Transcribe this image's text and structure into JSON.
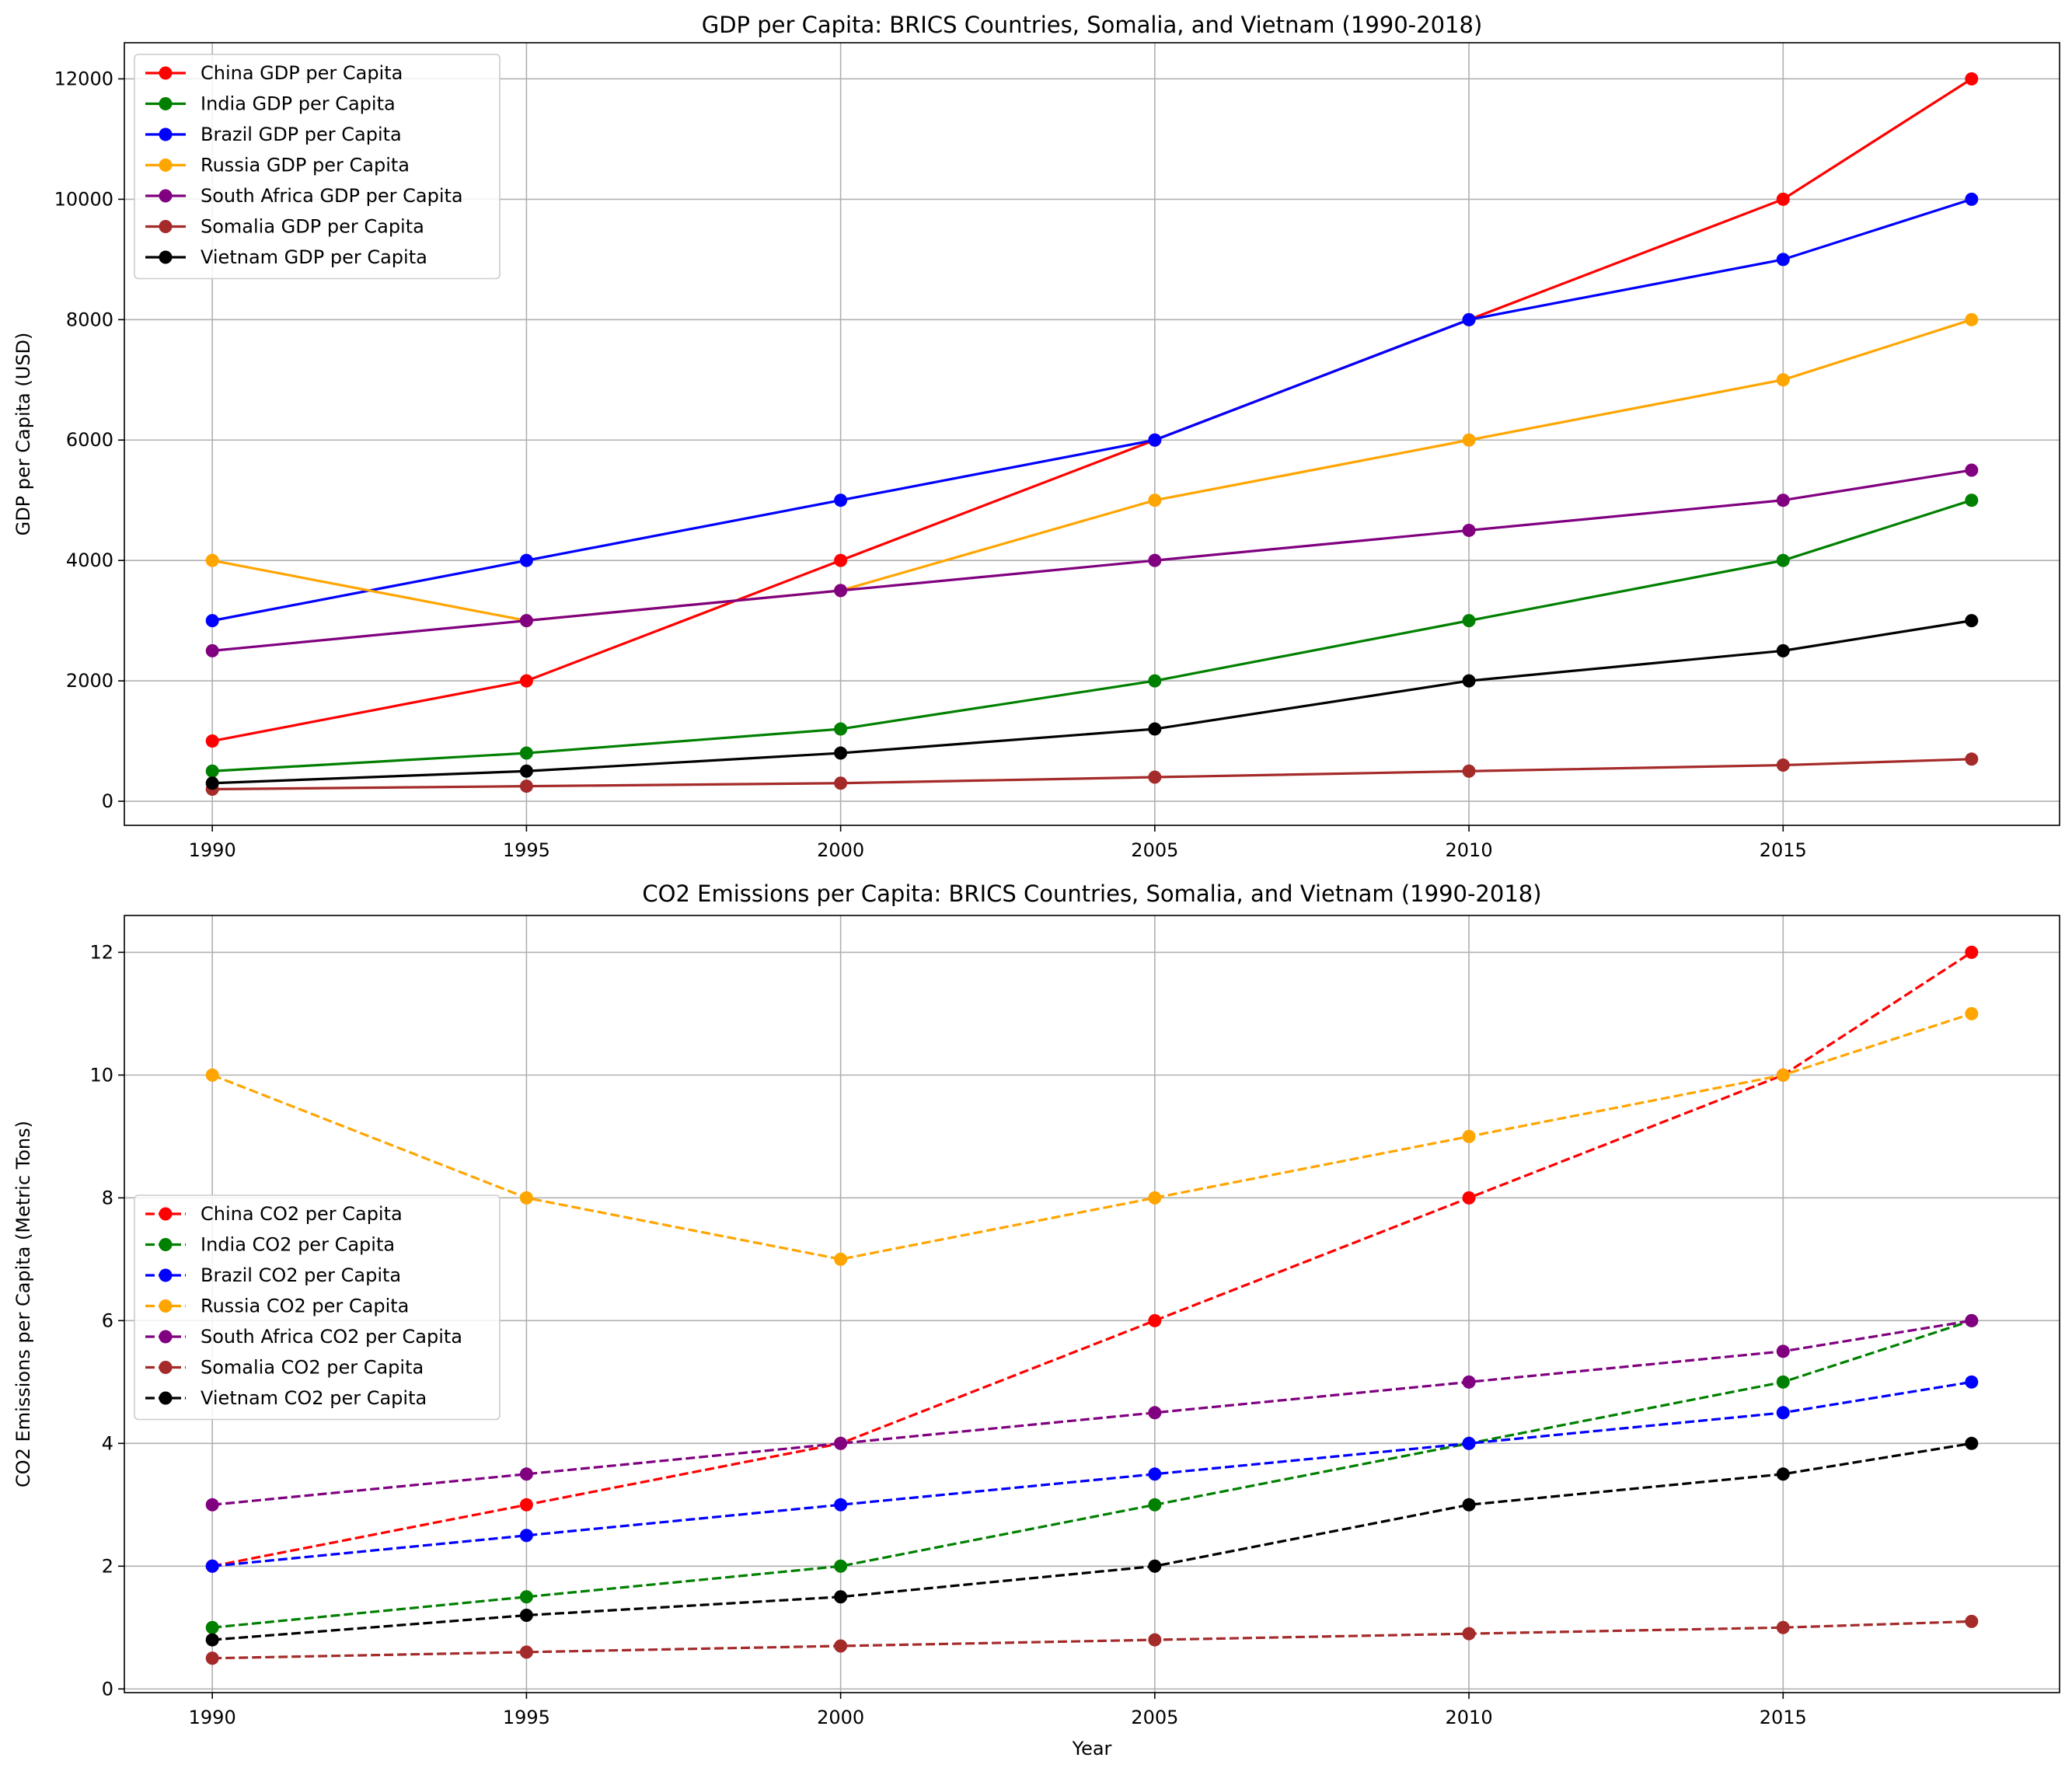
{
  "chart_data": [
    {
      "type": "line",
      "title": "GDP per Capita: BRICS Countries, Somalia, and Vietnam (1990-2018)",
      "xlabel": "",
      "ylabel": "GDP per Capita (USD)",
      "x": [
        1990,
        1995,
        2000,
        2005,
        2010,
        2015,
        2018
      ],
      "xticks": [
        "1990",
        "1995",
        "2000",
        "2005",
        "2010",
        "2015"
      ],
      "yticks": [
        "0",
        "2000",
        "4000",
        "6000",
        "8000",
        "10000",
        "12000"
      ],
      "xlim": [
        1988.6,
        2019.4
      ],
      "ylim": [
        -400,
        12600
      ],
      "grid": true,
      "legend": "top-left",
      "line_style": "solid",
      "series": [
        {
          "name": "China GDP per Capita",
          "color": "#ff0000",
          "values": [
            1000,
            2000,
            4000,
            6000,
            8000,
            10000,
            12000
          ]
        },
        {
          "name": "India GDP per Capita",
          "color": "#008000",
          "values": [
            500,
            800,
            1200,
            2000,
            3000,
            4000,
            5000
          ]
        },
        {
          "name": "Brazil GDP per Capita",
          "color": "#0000ff",
          "values": [
            3000,
            4000,
            5000,
            6000,
            8000,
            9000,
            10000
          ]
        },
        {
          "name": "Russia GDP per Capita",
          "color": "#ffa500",
          "values": [
            4000,
            3000,
            3500,
            5000,
            6000,
            7000,
            8000
          ]
        },
        {
          "name": "South Africa GDP per Capita",
          "color": "#800080",
          "values": [
            2500,
            3000,
            3500,
            4000,
            4500,
            5000,
            5500
          ]
        },
        {
          "name": "Somalia GDP per Capita",
          "color": "#a52a2a",
          "values": [
            200,
            250,
            300,
            400,
            500,
            600,
            700
          ]
        },
        {
          "name": "Vietnam GDP per Capita",
          "color": "#000000",
          "values": [
            300,
            500,
            800,
            1200,
            2000,
            2500,
            3000
          ]
        }
      ]
    },
    {
      "type": "line",
      "title": "CO2 Emissions per Capita: BRICS Countries, Somalia, and Vietnam (1990-2018)",
      "xlabel": "Year",
      "ylabel": "CO2 Emissions per Capita (Metric Tons)",
      "x": [
        1990,
        1995,
        2000,
        2005,
        2010,
        2015,
        2018
      ],
      "xticks": [
        "1990",
        "1995",
        "2000",
        "2005",
        "2010",
        "2015"
      ],
      "yticks": [
        "0",
        "2",
        "4",
        "6",
        "8",
        "10",
        "12"
      ],
      "xlim": [
        1988.6,
        2019.4
      ],
      "ylim": [
        -0.06,
        12.6
      ],
      "grid": true,
      "legend": "center-left",
      "line_style": "dashed",
      "series": [
        {
          "name": "China CO2 per Capita",
          "color": "#ff0000",
          "values": [
            2,
            3,
            4,
            6,
            8,
            10,
            12
          ]
        },
        {
          "name": "India CO2 per Capita",
          "color": "#008000",
          "values": [
            1,
            1.5,
            2,
            3,
            4,
            5,
            6
          ]
        },
        {
          "name": "Brazil CO2 per Capita",
          "color": "#0000ff",
          "values": [
            2,
            2.5,
            3,
            3.5,
            4,
            4.5,
            5
          ]
        },
        {
          "name": "Russia CO2 per Capita",
          "color": "#ffa500",
          "values": [
            10,
            8,
            7,
            8,
            9,
            10,
            11
          ]
        },
        {
          "name": "South Africa CO2 per Capita",
          "color": "#800080",
          "values": [
            3,
            3.5,
            4,
            4.5,
            5,
            5.5,
            6
          ]
        },
        {
          "name": "Somalia CO2 per Capita",
          "color": "#a52a2a",
          "values": [
            0.5,
            0.6,
            0.7,
            0.8,
            0.9,
            1,
            1.1
          ]
        },
        {
          "name": "Vietnam CO2 per Capita",
          "color": "#000000",
          "values": [
            0.8,
            1.2,
            1.5,
            2,
            3,
            3.5,
            4
          ]
        }
      ]
    }
  ]
}
